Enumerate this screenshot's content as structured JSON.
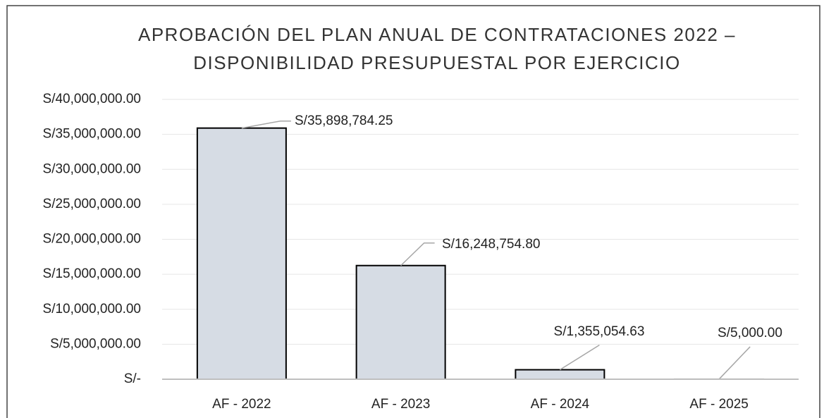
{
  "chart_data": {
    "type": "bar",
    "title": [
      "APROBACIÓN DEL PLAN ANUAL DE CONTRATACIONES 2022 –",
      "DISPONIBILIDAD PRESUPUESTAL POR EJERCICIO"
    ],
    "categories": [
      "AF - 2022",
      "AF - 2023",
      "AF - 2024",
      "AF - 2025"
    ],
    "values": [
      35898784.25,
      16248754.8,
      1355054.63,
      5000.0
    ],
    "value_labels": [
      "S/35,898,784.25",
      "S/16,248,754.80",
      "S/1,355,054.63",
      "S/5,000.00"
    ],
    "color": "#d6dce4",
    "ylim": [
      0,
      40000000
    ],
    "yticks": [
      {
        "value": 0,
        "label": "S/-"
      },
      {
        "value": 5000000,
        "label": "S/5,000,000.00"
      },
      {
        "value": 10000000,
        "label": "S/10,000,000.00"
      },
      {
        "value": 15000000,
        "label": "S/15,000,000.00"
      },
      {
        "value": 20000000,
        "label": "S/20,000,000.00"
      },
      {
        "value": 25000000,
        "label": "S/25,000,000.00"
      },
      {
        "value": 30000000,
        "label": "S/30,000,000.00"
      },
      {
        "value": 35000000,
        "label": "S/35,000,000.00"
      },
      {
        "value": 40000000,
        "label": "S/40,000,000.00"
      }
    ],
    "grid": true
  }
}
